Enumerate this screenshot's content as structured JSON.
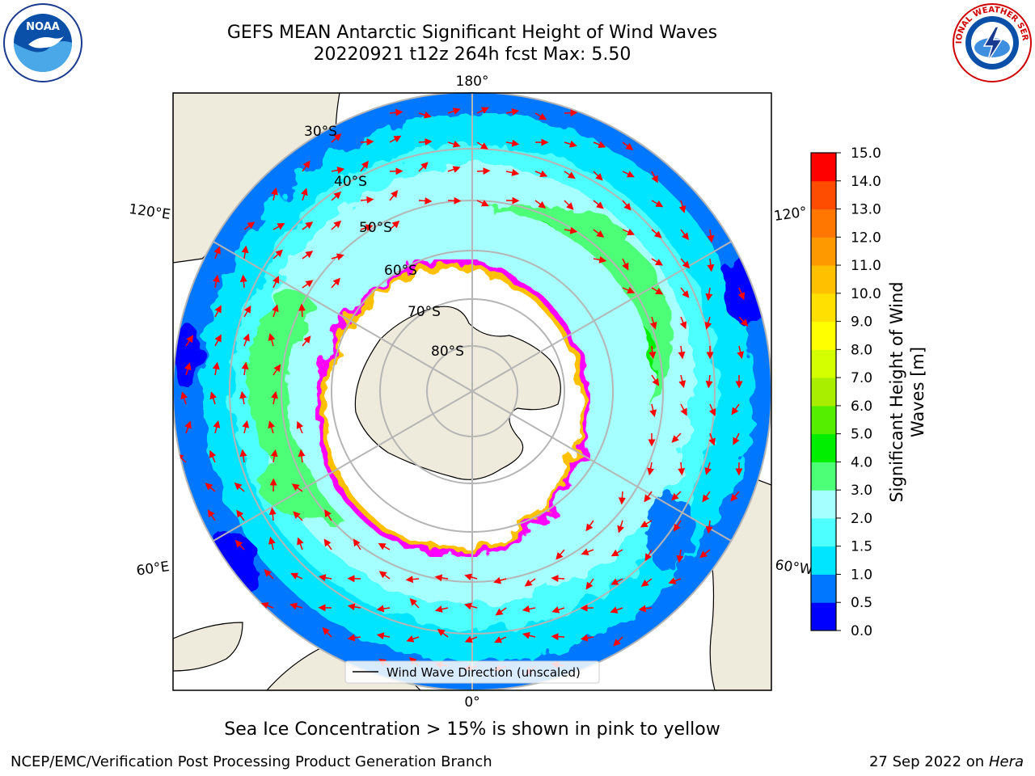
{
  "title": {
    "line1": "GEFS MEAN Antarctic Significant Height of Wind Waves",
    "line2": "20220921 t12z 264h fcst   Max: 5.50"
  },
  "map": {
    "projection": "south-polar-stereographic",
    "longitude_labels": [
      "180°",
      "120°E",
      "120°",
      "60°E",
      "60°W",
      "0°"
    ],
    "latitude_labels": [
      "30°S",
      "40°S",
      "50°S",
      "60°S",
      "70°S",
      "80°S"
    ],
    "legend_label": "Wind Wave Direction (unscaled)",
    "arrow_color": "#ff0000",
    "land_color": "#efebdc",
    "no_data_color": "#ffffff"
  },
  "colorbar": {
    "label": "Significant Height of Wind Waves [m]",
    "ticks": [
      "0.0",
      "0.5",
      "1.0",
      "1.5",
      "2.0",
      "3.0",
      "4.0",
      "5.0",
      "6.0",
      "7.0",
      "8.0",
      "9.0",
      "10.0",
      "11.0",
      "12.0",
      "13.0",
      "14.0",
      "15.0"
    ],
    "colors": [
      "#0000ff",
      "#0077ff",
      "#00e5ff",
      "#4dffff",
      "#a6ffff",
      "#4dff77",
      "#00ee00",
      "#55ee00",
      "#a9ee00",
      "#d4ff00",
      "#ffff00",
      "#ffe000",
      "#ffc000",
      "#ff9900",
      "#ff7700",
      "#ff4d00",
      "#ff0000"
    ]
  },
  "footer": {
    "sea_ice_note": "Sea Ice Concentration > 15% is shown in pink to yellow",
    "credit": "NCEP/EMC/Verification Post Processing Product Generation Branch",
    "date": "27 Sep 2022 on",
    "host": "Hera"
  },
  "logos": {
    "left": "noaa-logo",
    "left_text": "NOAA",
    "right": "nws-logo",
    "right_text": "NATIONAL WEATHER SERVICE"
  }
}
